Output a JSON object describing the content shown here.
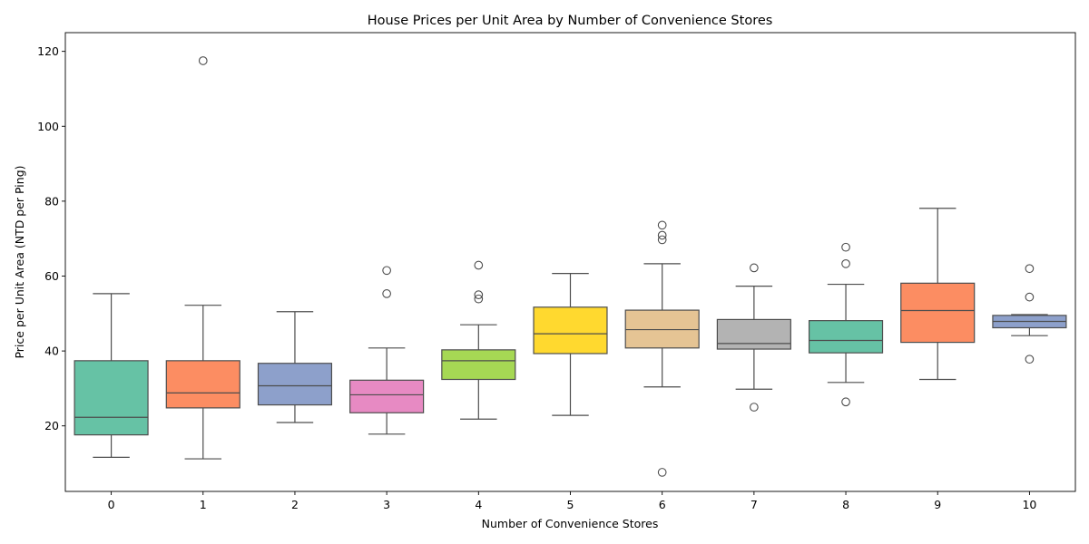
{
  "chart_data": {
    "type": "box",
    "title": "House Prices per Unit Area by Number of Convenience Stores",
    "xlabel": "Number of Convenience Stores",
    "ylabel": "Price per Unit Area (NTD per Ping)",
    "ylim": [
      2.5,
      125
    ],
    "yticks": [
      20,
      40,
      60,
      80,
      100,
      120
    ],
    "grid": false,
    "legend": "none",
    "categories": [
      "0",
      "1",
      "2",
      "3",
      "4",
      "5",
      "6",
      "7",
      "8",
      "9",
      "10"
    ],
    "colors": [
      "#66c2a5",
      "#fc8d62",
      "#8da0cb",
      "#e78ac3",
      "#a6d854",
      "#ffd92f",
      "#e5c494",
      "#b3b3b3",
      "#66c2a5",
      "#fc8d62",
      "#8da0cb"
    ],
    "boxes": [
      {
        "category": "0",
        "whisker_low": 11.6,
        "q1": 17.6,
        "median": 22.3,
        "q3": 37.4,
        "whisker_high": 55.3,
        "outliers": []
      },
      {
        "category": "1",
        "whisker_low": 11.2,
        "q1": 24.8,
        "median": 28.8,
        "q3": 37.4,
        "whisker_high": 52.2,
        "outliers": [
          117.5
        ]
      },
      {
        "category": "2",
        "whisker_low": 20.9,
        "q1": 25.6,
        "median": 30.7,
        "q3": 36.7,
        "whisker_high": 50.5,
        "outliers": []
      },
      {
        "category": "3",
        "whisker_low": 17.8,
        "q1": 23.5,
        "median": 28.3,
        "q3": 32.2,
        "whisker_high": 40.8,
        "outliers": [
          55.3,
          61.5
        ]
      },
      {
        "category": "4",
        "whisker_low": 21.8,
        "q1": 32.4,
        "median": 37.4,
        "q3": 40.3,
        "whisker_high": 47.0,
        "outliers": [
          53.9,
          55.0,
          62.9
        ]
      },
      {
        "category": "5",
        "whisker_low": 22.8,
        "q1": 39.3,
        "median": 44.6,
        "q3": 51.7,
        "whisker_high": 60.7,
        "outliers": []
      },
      {
        "category": "6",
        "whisker_low": 30.4,
        "q1": 40.8,
        "median": 45.7,
        "q3": 50.9,
        "whisker_high": 63.3,
        "outliers": [
          73.6,
          70.9,
          69.7,
          7.6
        ]
      },
      {
        "category": "7",
        "whisker_low": 29.8,
        "q1": 40.5,
        "median": 42.0,
        "q3": 48.4,
        "whisker_high": 57.3,
        "outliers": [
          62.2,
          25.0
        ]
      },
      {
        "category": "8",
        "whisker_low": 31.6,
        "q1": 39.5,
        "median": 42.8,
        "q3": 48.1,
        "whisker_high": 57.8,
        "outliers": [
          67.7,
          63.3,
          26.4
        ]
      },
      {
        "category": "9",
        "whisker_low": 32.4,
        "q1": 42.3,
        "median": 50.8,
        "q3": 58.1,
        "whisker_high": 78.1,
        "outliers": []
      },
      {
        "category": "10",
        "whisker_low": 44.1,
        "q1": 46.2,
        "median": 47.9,
        "q3": 49.5,
        "whisker_high": 49.7,
        "outliers": [
          62.0,
          54.4,
          37.8
        ]
      }
    ]
  }
}
